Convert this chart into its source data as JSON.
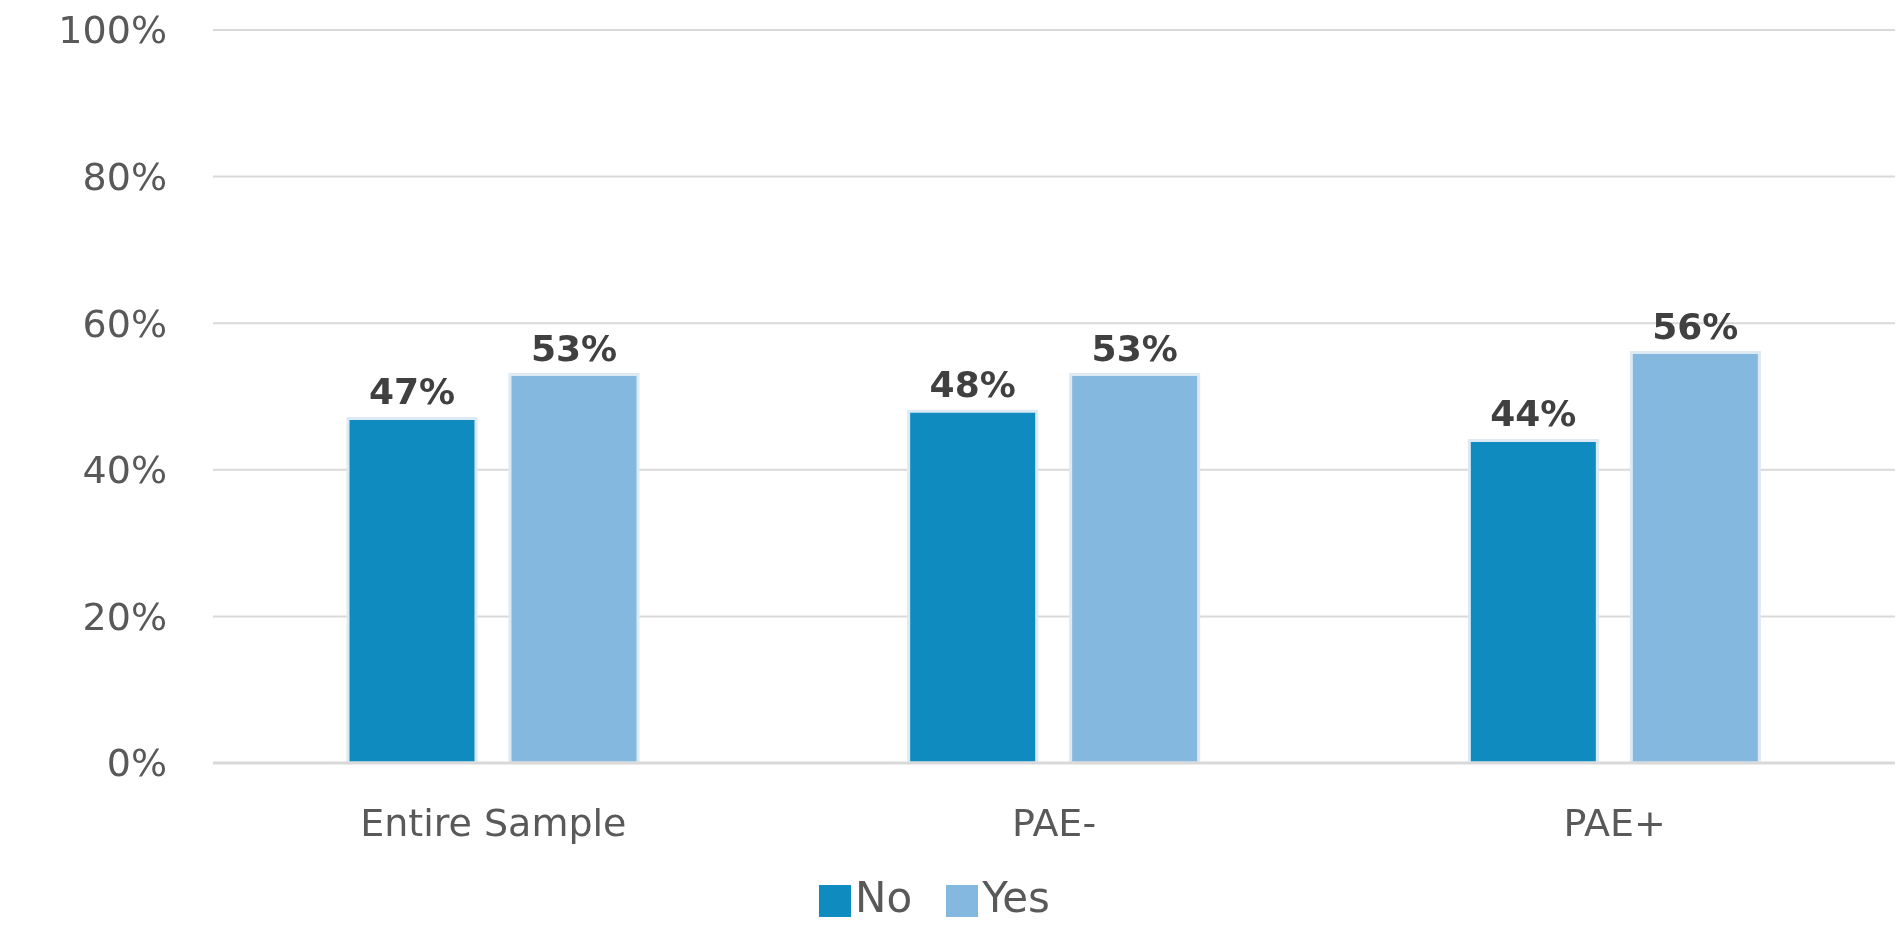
{
  "chart_data": {
    "type": "bar",
    "categories": [
      "Entire Sample",
      "PAE-",
      "PAE+"
    ],
    "series": [
      {
        "name": "No",
        "color": "#0f8bbf",
        "values": [
          47,
          48,
          44
        ],
        "value_labels": [
          "47%",
          "48%",
          "44%"
        ]
      },
      {
        "name": "Yes",
        "color": "#85b8df",
        "values": [
          53,
          53,
          56
        ],
        "value_labels": [
          "53%",
          "53%",
          "56%"
        ]
      }
    ],
    "ylim": [
      0,
      100
    ],
    "yticks": [
      {
        "value": 0,
        "label": "0%"
      },
      {
        "value": 20,
        "label": "20%"
      },
      {
        "value": 40,
        "label": "40%"
      },
      {
        "value": 60,
        "label": "60%"
      },
      {
        "value": 80,
        "label": "80%"
      },
      {
        "value": 100,
        "label": "100%"
      }
    ],
    "grid": "y",
    "legend": "bottom"
  }
}
